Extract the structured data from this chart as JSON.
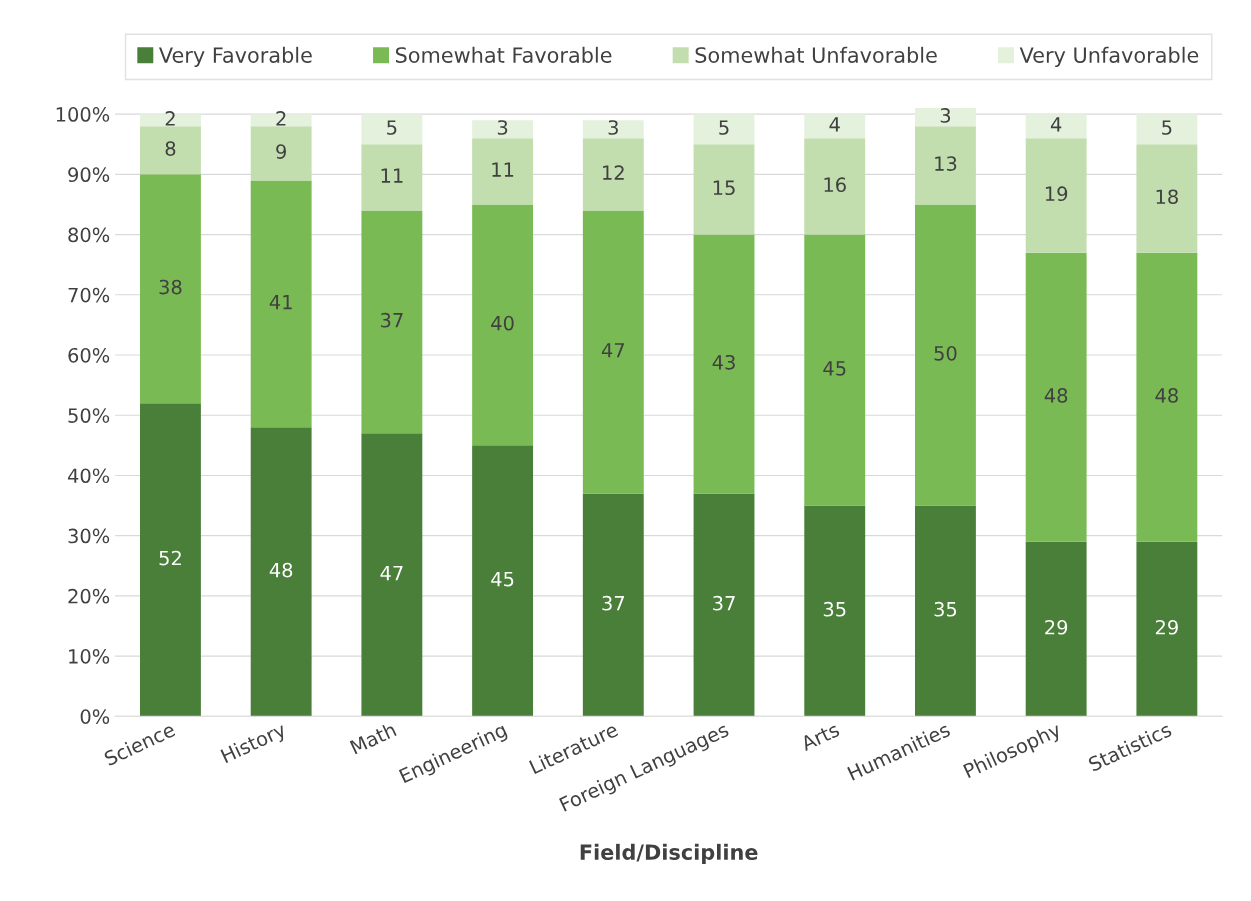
{
  "chart_data": {
    "type": "bar",
    "stacked": true,
    "xlabel": "Field/Discipline",
    "categories": [
      "Science",
      "History",
      "Math",
      "Engineering",
      "Literature",
      "Foreign Languages",
      "Arts",
      "Humanities",
      "Philosophy",
      "Statistics"
    ],
    "series": [
      {
        "name": "Very Favorable",
        "color": "#4a7f3a",
        "values": [
          52,
          48,
          47,
          45,
          37,
          37,
          35,
          35,
          29,
          29
        ]
      },
      {
        "name": "Somewhat Favorable",
        "color": "#7aba55",
        "values": [
          38,
          41,
          37,
          40,
          47,
          43,
          45,
          50,
          48,
          48
        ]
      },
      {
        "name": "Somewhat Unfavorable",
        "color": "#c2deae",
        "values": [
          8,
          9,
          11,
          11,
          12,
          15,
          16,
          13,
          19,
          18
        ]
      },
      {
        "name": "Very Unfavorable",
        "color": "#e4f1dc",
        "values": [
          2,
          2,
          5,
          3,
          3,
          5,
          4,
          3,
          4,
          5
        ]
      }
    ],
    "ylim": [
      0,
      101
    ],
    "yticks": [
      {
        "value": 0,
        "label": "0%"
      },
      {
        "value": 10,
        "label": "10%"
      },
      {
        "value": 20,
        "label": "20%"
      },
      {
        "value": 30,
        "label": "30%"
      },
      {
        "value": 40,
        "label": "40%"
      },
      {
        "value": 50,
        "label": "50%"
      },
      {
        "value": 60,
        "label": "60%"
      },
      {
        "value": 70,
        "label": "70%"
      },
      {
        "value": 80,
        "label": "80%"
      },
      {
        "value": 90,
        "label": "90%"
      },
      {
        "value": 100,
        "label": "100%"
      }
    ],
    "grid": "y",
    "legend": "top",
    "data_labels": true
  }
}
